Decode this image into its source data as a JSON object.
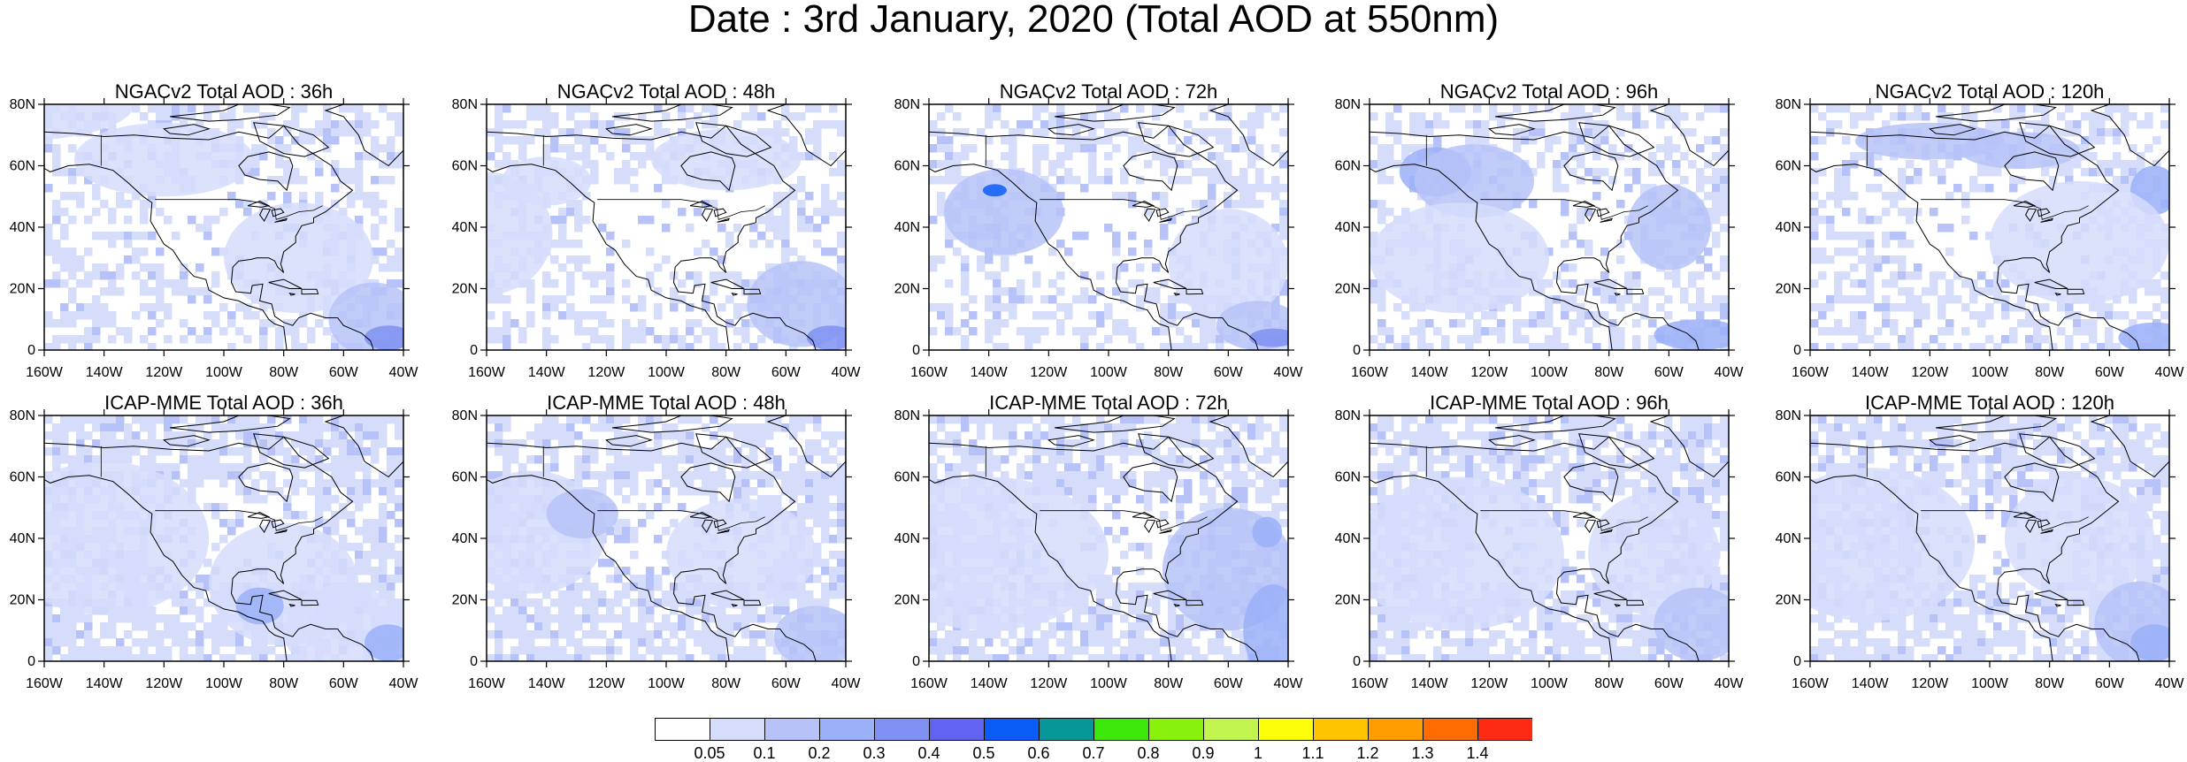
{
  "title": "Date : 3rd January, 2020 (Total AOD at 550nm)",
  "lon_ticks": [
    "160W",
    "140W",
    "120W",
    "100W",
    "80W",
    "60W",
    "40W"
  ],
  "lat_ticks": [
    "80N",
    "60N",
    "40N",
    "20N",
    "0"
  ],
  "panels": [
    {
      "title": "NGACv2 Total AOD : 36h",
      "model": "NGACv2",
      "forecast_hour": 36
    },
    {
      "title": "NGACv2 Total AOD : 48h",
      "model": "NGACv2",
      "forecast_hour": 48
    },
    {
      "title": "NGACv2 Total AOD : 72h",
      "model": "NGACv2",
      "forecast_hour": 72
    },
    {
      "title": "NGACv2 Total AOD : 96h",
      "model": "NGACv2",
      "forecast_hour": 96
    },
    {
      "title": "NGACv2 Total AOD : 120h",
      "model": "NGACv2",
      "forecast_hour": 120
    },
    {
      "title": "ICAP-MME Total AOD : 36h",
      "model": "ICAP-MME",
      "forecast_hour": 36
    },
    {
      "title": "ICAP-MME Total AOD : 48h",
      "model": "ICAP-MME",
      "forecast_hour": 48
    },
    {
      "title": "ICAP-MME Total AOD : 72h",
      "model": "ICAP-MME",
      "forecast_hour": 72
    },
    {
      "title": "ICAP-MME Total AOD : 96h",
      "model": "ICAP-MME",
      "forecast_hour": 96
    },
    {
      "title": "ICAP-MME Total AOD : 120h",
      "model": "ICAP-MME",
      "forecast_hour": 120
    }
  ],
  "colorbar": {
    "labels": [
      "0.05",
      "0.1",
      "0.2",
      "0.3",
      "0.4",
      "0.5",
      "0.6",
      "0.7",
      "0.8",
      "0.9",
      "1",
      "1.1",
      "1.2",
      "1.3",
      "1.4"
    ],
    "colors": [
      "#ffffff",
      "#d6ddfb",
      "#b7c3f8",
      "#9ab0f8",
      "#7f91f2",
      "#5f63ef",
      "#0a5cf7",
      "#069898",
      "#3ce80a",
      "#89f20a",
      "#c2f450",
      "#fdff0a",
      "#ffc400",
      "#ff9c00",
      "#ff6d00",
      "#ff2a12"
    ]
  }
}
